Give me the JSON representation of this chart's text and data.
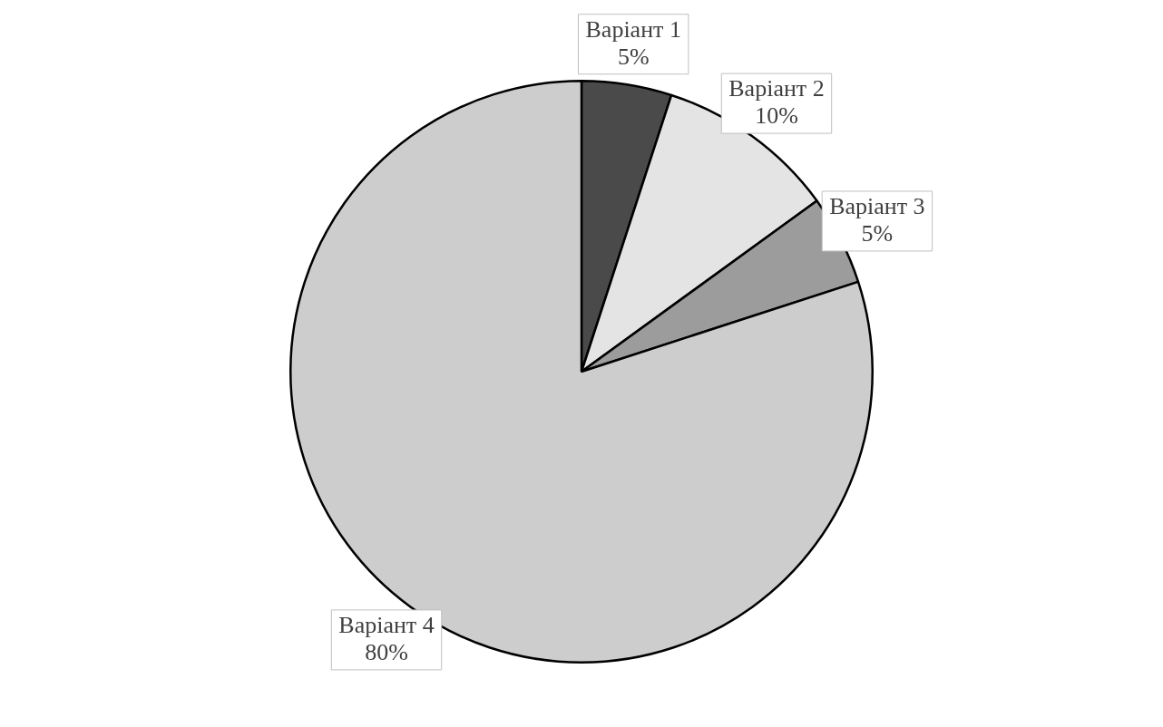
{
  "chart_data": {
    "type": "pie",
    "categories": [
      "Варіант 1",
      "Варіант 2",
      "Варіант 3",
      "Варіант 4"
    ],
    "values": [
      5,
      10,
      5,
      80
    ],
    "colors": [
      "#4a4a4a",
      "#e4e4e4",
      "#9c9c9c",
      "#cdcdcd"
    ],
    "value_labels": [
      "5%",
      "10%",
      "5%",
      "80%"
    ],
    "legend": false
  }
}
